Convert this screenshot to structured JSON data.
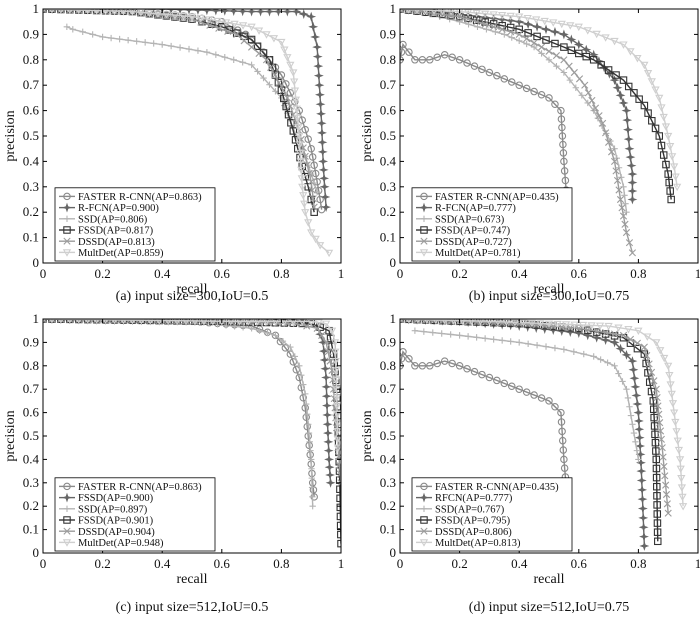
{
  "chart_data": [
    {
      "type": "line",
      "title": "(a) input size=300,IoU=0.5",
      "xlabel": "recall",
      "ylabel": "precision",
      "xlim": [
        0,
        1
      ],
      "ylim": [
        0,
        1
      ],
      "xticks": [
        "0",
        "0.2",
        "0.4",
        "0.6",
        "0.8",
        "1"
      ],
      "yticks": [
        "0",
        "0.1",
        "0.2",
        "0.3",
        "0.4",
        "0.5",
        "0.6",
        "0.7",
        "0.8",
        "0.9",
        "1"
      ],
      "grid": false,
      "legend_position": "bottom-left",
      "series": [
        {
          "name": "FASTER R-CNN(AP=0.863)",
          "color": "#8a8a8a",
          "marker": "circle",
          "x": [
            0,
            0.3,
            0.5,
            0.6,
            0.68,
            0.74,
            0.8,
            0.86,
            0.9,
            0.92,
            0.93,
            0.935
          ],
          "y": [
            1,
            0.99,
            0.97,
            0.95,
            0.9,
            0.83,
            0.74,
            0.6,
            0.45,
            0.32,
            0.25,
            0.21
          ]
        },
        {
          "name": "R-FCN(AP=0.900)",
          "color": "#666666",
          "marker": "star",
          "x": [
            0,
            0.4,
            0.7,
            0.85,
            0.9,
            0.92,
            0.935,
            0.94,
            0.945,
            0.95
          ],
          "y": [
            1,
            1,
            0.99,
            0.99,
            0.97,
            0.85,
            0.55,
            0.4,
            0.3,
            0.22
          ]
        },
        {
          "name": "SSD(AP=0.806)",
          "color": "#b4b4b4",
          "marker": "plus",
          "x": [
            0.08,
            0.1,
            0.2,
            0.4,
            0.55,
            0.7,
            0.8,
            0.85,
            0.88,
            0.9,
            0.92
          ],
          "y": [
            0.93,
            0.92,
            0.89,
            0.86,
            0.83,
            0.78,
            0.65,
            0.5,
            0.42,
            0.35,
            0.28
          ]
        },
        {
          "name": "FSSD(AP=0.817)",
          "color": "#333333",
          "marker": "square",
          "x": [
            0,
            0.3,
            0.5,
            0.6,
            0.7,
            0.76,
            0.8,
            0.84,
            0.87,
            0.89,
            0.9,
            0.91
          ],
          "y": [
            1,
            0.99,
            0.96,
            0.93,
            0.88,
            0.8,
            0.68,
            0.52,
            0.38,
            0.3,
            0.25,
            0.2
          ]
        },
        {
          "name": "DSSD(AP=0.813)",
          "color": "#9c9c9c",
          "marker": "x",
          "x": [
            0,
            0.3,
            0.5,
            0.65,
            0.75,
            0.82,
            0.86,
            0.88,
            0.9,
            0.91
          ],
          "y": [
            1,
            0.99,
            0.96,
            0.9,
            0.8,
            0.65,
            0.52,
            0.42,
            0.32,
            0.22
          ]
        },
        {
          "name": "MultDet(AP=0.859)",
          "color": "#cfcfcf",
          "marker": "triangle-down",
          "x": [
            0,
            0.3,
            0.5,
            0.7,
            0.8,
            0.84,
            0.86,
            0.87,
            0.88,
            0.9,
            0.93,
            0.96
          ],
          "y": [
            1,
            0.99,
            0.97,
            0.93,
            0.87,
            0.75,
            0.5,
            0.3,
            0.2,
            0.12,
            0.07,
            0.04
          ]
        }
      ]
    },
    {
      "type": "line",
      "title": "(b) input size=300,IoU=0.75",
      "xlabel": "recall",
      "ylabel": "precision",
      "xlim": [
        0,
        1
      ],
      "ylim": [
        0,
        1
      ],
      "xticks": [
        "0",
        "0.2",
        "0.4",
        "0.6",
        "0.8",
        "1"
      ],
      "yticks": [
        "0",
        "0.1",
        "0.2",
        "0.3",
        "0.4",
        "0.5",
        "0.6",
        "0.7",
        "0.8",
        "0.9",
        "1"
      ],
      "grid": false,
      "legend_position": "bottom-left",
      "series": [
        {
          "name": "FASTER R-CNN(AP=0.435)",
          "color": "#8a8a8a",
          "marker": "circle",
          "x": [
            0,
            0.01,
            0.05,
            0.1,
            0.15,
            0.2,
            0.3,
            0.4,
            0.5,
            0.54,
            0.55,
            0.56,
            0.56
          ],
          "y": [
            0.8,
            0.86,
            0.8,
            0.8,
            0.82,
            0.8,
            0.75,
            0.7,
            0.65,
            0.6,
            0.4,
            0.25,
            0.17
          ]
        },
        {
          "name": "R-FCN(AP=0.777)",
          "color": "#666666",
          "marker": "star",
          "x": [
            0,
            0.2,
            0.4,
            0.55,
            0.65,
            0.72,
            0.76,
            0.77,
            0.78,
            0.78
          ],
          "y": [
            1,
            0.98,
            0.95,
            0.9,
            0.82,
            0.72,
            0.6,
            0.45,
            0.35,
            0.25
          ]
        },
        {
          "name": "SSD(AP=0.673)",
          "color": "#b4b4b4",
          "marker": "plus",
          "x": [
            0.1,
            0.2,
            0.35,
            0.45,
            0.55,
            0.65,
            0.72,
            0.75,
            0.76
          ],
          "y": [
            0.98,
            0.95,
            0.9,
            0.85,
            0.75,
            0.6,
            0.45,
            0.3,
            0.2
          ]
        },
        {
          "name": "FSSD(AP=0.747)",
          "color": "#333333",
          "marker": "square",
          "x": [
            0,
            0.2,
            0.4,
            0.55,
            0.65,
            0.75,
            0.82,
            0.87,
            0.9,
            0.91
          ],
          "y": [
            1,
            0.97,
            0.92,
            0.85,
            0.8,
            0.72,
            0.62,
            0.5,
            0.35,
            0.25
          ]
        },
        {
          "name": "DSSD(AP=0.727)",
          "color": "#9c9c9c",
          "marker": "x",
          "x": [
            0,
            0.2,
            0.4,
            0.55,
            0.62,
            0.68,
            0.72,
            0.74,
            0.76,
            0.78
          ],
          "y": [
            1,
            0.97,
            0.9,
            0.8,
            0.7,
            0.55,
            0.4,
            0.25,
            0.12,
            0.04
          ]
        },
        {
          "name": "MultDet(AP=0.781)",
          "color": "#cfcfcf",
          "marker": "triangle-down",
          "x": [
            0,
            0.2,
            0.4,
            0.6,
            0.75,
            0.82,
            0.87,
            0.9,
            0.92,
            0.93
          ],
          "y": [
            1,
            0.99,
            0.97,
            0.93,
            0.86,
            0.78,
            0.65,
            0.5,
            0.38,
            0.3
          ]
        }
      ]
    },
    {
      "type": "line",
      "title": "(c) input size=512,IoU=0.5",
      "xlabel": "recall",
      "ylabel": "precision",
      "xlim": [
        0,
        1
      ],
      "ylim": [
        0,
        1
      ],
      "xticks": [
        "0",
        "0.2",
        "0.4",
        "0.6",
        "0.8",
        "1"
      ],
      "yticks": [
        "0",
        "0.1",
        "0.2",
        "0.3",
        "0.4",
        "0.5",
        "0.6",
        "0.7",
        "0.8",
        "0.9",
        "1"
      ],
      "grid": false,
      "legend_position": "bottom-left",
      "series": [
        {
          "name": "FASTER R-CNN(AP=0.863)",
          "color": "#8a8a8a",
          "marker": "circle",
          "x": [
            0,
            0.5,
            0.7,
            0.78,
            0.83,
            0.86,
            0.88,
            0.89,
            0.9,
            0.905,
            0.91
          ],
          "y": [
            1,
            0.99,
            0.97,
            0.93,
            0.85,
            0.75,
            0.62,
            0.5,
            0.38,
            0.3,
            0.24
          ]
        },
        {
          "name": "FSSD(AP=0.900)",
          "color": "#666666",
          "marker": "star",
          "x": [
            0,
            0.6,
            0.85,
            0.92,
            0.94,
            0.95,
            0.955,
            0.96,
            0.965
          ],
          "y": [
            1,
            0.99,
            0.99,
            0.97,
            0.9,
            0.75,
            0.55,
            0.4,
            0.3
          ]
        },
        {
          "name": "SSD(AP=0.897)",
          "color": "#b4b4b4",
          "marker": "plus",
          "x": [
            0,
            0.5,
            0.7,
            0.78,
            0.83,
            0.86,
            0.88,
            0.89,
            0.9,
            0.905
          ],
          "y": [
            1,
            0.99,
            0.96,
            0.93,
            0.88,
            0.8,
            0.68,
            0.55,
            0.4,
            0.2
          ]
        },
        {
          "name": "FSSD(AP=0.901)",
          "color": "#333333",
          "marker": "square",
          "x": [
            0,
            0.6,
            0.9,
            0.96,
            0.975,
            0.985,
            0.99,
            0.995,
            1.0
          ],
          "y": [
            1,
            0.99,
            0.98,
            0.95,
            0.85,
            0.7,
            0.55,
            0.35,
            0.04
          ]
        },
        {
          "name": "DSSD(AP=0.904)",
          "color": "#9c9c9c",
          "marker": "x",
          "x": [
            0,
            0.6,
            0.85,
            0.92,
            0.95,
            0.97,
            0.98,
            0.99,
            1.0
          ],
          "y": [
            1,
            0.99,
            0.98,
            0.96,
            0.9,
            0.78,
            0.62,
            0.45,
            0.3
          ]
        },
        {
          "name": "MultDet(AP=0.948)",
          "color": "#cfcfcf",
          "marker": "triangle-down",
          "x": [
            0,
            0.6,
            0.9,
            0.95,
            0.97,
            0.98,
            0.985,
            0.99
          ],
          "y": [
            1,
            0.99,
            0.99,
            0.98,
            0.95,
            0.9,
            0.7,
            0.45
          ]
        }
      ]
    },
    {
      "type": "line",
      "title": "(d) input size=512,IoU=0.75",
      "xlabel": "recall",
      "ylabel": "precision",
      "xlim": [
        0,
        1
      ],
      "ylim": [
        0,
        1
      ],
      "xticks": [
        "0",
        "0.2",
        "0.4",
        "0.6",
        "0.8",
        "1"
      ],
      "yticks": [
        "0",
        "0.1",
        "0.2",
        "0.3",
        "0.4",
        "0.5",
        "0.6",
        "0.7",
        "0.8",
        "0.9",
        "1"
      ],
      "grid": false,
      "legend_position": "bottom-left",
      "series": [
        {
          "name": "FASTER R-CNN(AP=0.435)",
          "color": "#8a8a8a",
          "marker": "circle",
          "x": [
            0,
            0.01,
            0.05,
            0.1,
            0.15,
            0.2,
            0.3,
            0.4,
            0.5,
            0.54,
            0.55,
            0.56,
            0.56
          ],
          "y": [
            0.8,
            0.86,
            0.8,
            0.8,
            0.82,
            0.8,
            0.75,
            0.7,
            0.65,
            0.6,
            0.4,
            0.25,
            0.17
          ]
        },
        {
          "name": "RFCN(AP=0.777)",
          "color": "#666666",
          "marker": "star",
          "x": [
            0,
            0.2,
            0.4,
            0.6,
            0.72,
            0.78,
            0.8,
            0.81,
            0.82
          ],
          "y": [
            1,
            0.99,
            0.97,
            0.94,
            0.9,
            0.82,
            0.6,
            0.35,
            0.03
          ]
        },
        {
          "name": "SSD(AP=0.767)",
          "color": "#b4b4b4",
          "marker": "plus",
          "x": [
            0.05,
            0.2,
            0.4,
            0.55,
            0.65,
            0.72,
            0.76,
            0.78,
            0.8
          ],
          "y": [
            0.95,
            0.93,
            0.9,
            0.87,
            0.84,
            0.8,
            0.7,
            0.55,
            0.4
          ]
        },
        {
          "name": "FSSD(AP=0.795)",
          "color": "#333333",
          "marker": "square",
          "x": [
            0,
            0.2,
            0.4,
            0.6,
            0.75,
            0.82,
            0.85,
            0.86,
            0.865
          ],
          "y": [
            1,
            0.99,
            0.98,
            0.96,
            0.92,
            0.85,
            0.65,
            0.4,
            0.05
          ]
        },
        {
          "name": "DSSD(AP=0.806)",
          "color": "#9c9c9c",
          "marker": "x",
          "x": [
            0,
            0.2,
            0.4,
            0.6,
            0.75,
            0.82,
            0.86,
            0.88,
            0.9
          ],
          "y": [
            1,
            0.99,
            0.98,
            0.96,
            0.93,
            0.88,
            0.7,
            0.45,
            0.17
          ]
        },
        {
          "name": "MultDet(AP=0.813)",
          "color": "#cfcfcf",
          "marker": "triangle-down",
          "x": [
            0,
            0.3,
            0.5,
            0.7,
            0.8,
            0.86,
            0.9,
            0.92,
            0.94,
            0.95
          ],
          "y": [
            1,
            0.99,
            0.98,
            0.97,
            0.95,
            0.9,
            0.8,
            0.6,
            0.4,
            0.2
          ]
        }
      ]
    }
  ]
}
